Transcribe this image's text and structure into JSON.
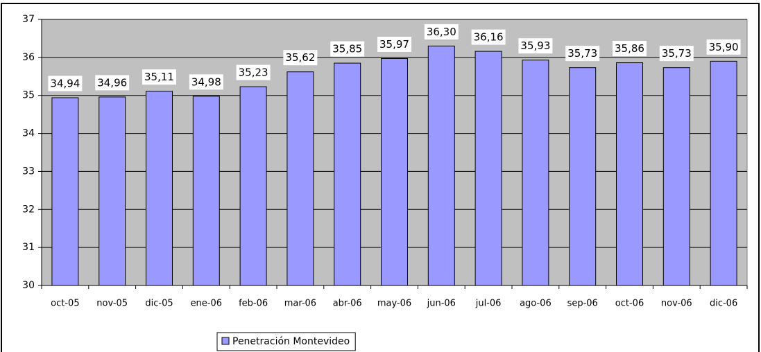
{
  "chart_data": {
    "type": "bar",
    "categories": [
      "oct-05",
      "nov-05",
      "dic-05",
      "ene-06",
      "feb-06",
      "mar-06",
      "abr-06",
      "may-06",
      "jun-06",
      "jul-06",
      "ago-06",
      "sep-06",
      "oct-06",
      "nov-06",
      "dic-06"
    ],
    "series": [
      {
        "name": "Penetración Montevideo",
        "color": "#9999ff",
        "values": [
          34.94,
          34.96,
          35.11,
          34.98,
          35.23,
          35.62,
          35.85,
          35.97,
          36.3,
          36.16,
          35.93,
          35.73,
          35.86,
          35.73,
          35.9
        ],
        "value_labels": [
          "34,94",
          "34,96",
          "35,11",
          "34,98",
          "35,23",
          "35,62",
          "35,85",
          "35,97",
          "36,30",
          "36,16",
          "35,93",
          "35,73",
          "35,86",
          "35,73",
          "35,90"
        ]
      }
    ],
    "ylim": [
      30,
      37
    ],
    "yticks": [
      30,
      31,
      32,
      33,
      34,
      35,
      36,
      37
    ],
    "grid": true,
    "legend": "bottom"
  }
}
